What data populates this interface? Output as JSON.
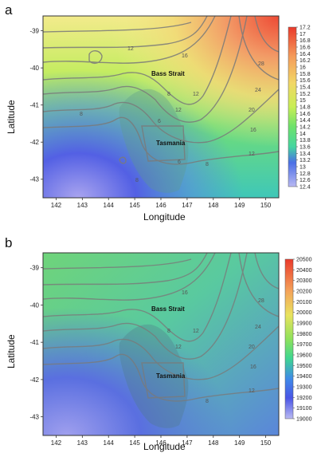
{
  "chart_data": [
    {
      "type": "heatmap",
      "panel_label": "a",
      "xlabel": "Longitude",
      "ylabel": "Latitude",
      "xlim": [
        141.5,
        150.5
      ],
      "ylim": [
        -43.5,
        -38.6
      ],
      "x_ticks": [
        "142",
        "143",
        "144",
        "145",
        "146",
        "147",
        "148",
        "149",
        "150"
      ],
      "y_ticks": [
        "-39",
        "-40",
        "-41",
        "-42",
        "-43"
      ],
      "annotations": [
        "Bass Strait",
        "Tasmania"
      ],
      "colorbar_ticks": [
        "17.2",
        "17",
        "16.8",
        "16.6",
        "16.4",
        "16.2",
        "16",
        "15.8",
        "15.6",
        "15.4",
        "15.2",
        "15",
        "14.8",
        "14.6",
        "14.4",
        "14.2",
        "14",
        "13.8",
        "13.6",
        "13.4",
        "13.2",
        "13",
        "12.8",
        "12.6",
        "12.4"
      ],
      "contour_labels": [
        "12",
        "12",
        "16",
        "20",
        "24",
        "28",
        "8",
        "8",
        "12",
        "16",
        "12",
        "8",
        "6",
        "6",
        "8"
      ],
      "colors": {
        "high": "#e83b2a",
        "mid_high": "#f4d35e",
        "mid": "#b8e84a",
        "mid_low": "#4fdc7a",
        "low": "#4a5ae8",
        "lowest": "#b0b0f0"
      }
    },
    {
      "type": "heatmap",
      "panel_label": "b",
      "xlabel": "Longitude",
      "ylabel": "Latitude",
      "xlim": [
        141.5,
        150.5
      ],
      "ylim": [
        -43.5,
        -38.6
      ],
      "x_ticks": [
        "142",
        "143",
        "144",
        "145",
        "146",
        "147",
        "148",
        "149",
        "150"
      ],
      "y_ticks": [
        "-39",
        "-40",
        "-41",
        "-42",
        "-43"
      ],
      "annotations": [
        "Bass Strait",
        "Tasmania"
      ],
      "colorbar_ticks": [
        "20500",
        "20400",
        "20300",
        "20200",
        "20100",
        "20000",
        "19900",
        "19800",
        "19700",
        "19600",
        "19500",
        "19400",
        "19300",
        "19200",
        "19100",
        "19000"
      ],
      "contour_labels": [
        "12",
        "16",
        "20",
        "24",
        "28",
        "8",
        "12",
        "16",
        "12",
        "8"
      ],
      "colors": {
        "high": "#e83b2a",
        "mid": "#5fcf8a",
        "low": "#4a5ae8",
        "lowest": "#b0b0f0"
      }
    }
  ]
}
